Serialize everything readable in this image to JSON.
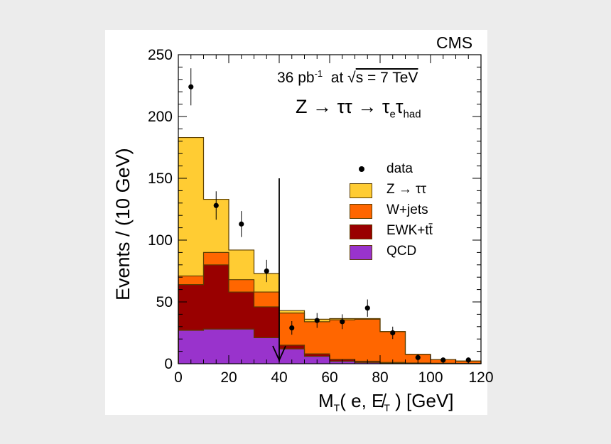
{
  "chart_data": {
    "type": "histogram-stacked",
    "experiment_label": "CMS",
    "luminosity_text": "36 pb",
    "luminosity_exponent": "-1",
    "energy_prefix": "at",
    "energy_text": "s = 7 TeV",
    "process_main": "Z → ττ → τ",
    "process_sub1": "e",
    "process_mid": "τ",
    "process_sub2": "had",
    "xlabel_main": "M",
    "xlabel_sub": "T",
    "xlabel_rest": "( e, E̸",
    "xlabel_sub2": "T",
    "xlabel_unit": " )  [GeV]",
    "ylabel": "Events / (10 GeV)",
    "xlim": [
      0,
      120
    ],
    "ylim": [
      0,
      250
    ],
    "x_ticks": [
      "0",
      "20",
      "40",
      "60",
      "80",
      "100",
      "120"
    ],
    "y_ticks": [
      "0",
      "50",
      "100",
      "150",
      "200",
      "250"
    ],
    "bin_edges": [
      0,
      10,
      20,
      30,
      40,
      50,
      60,
      70,
      80,
      90,
      100,
      110,
      120
    ],
    "series": [
      {
        "name": "QCD",
        "color": "#9933cc",
        "values": [
          27,
          28,
          28,
          21,
          12,
          6,
          2,
          1,
          0.5,
          0.3,
          0.2,
          0.1
        ]
      },
      {
        "name": "EWK+tt̄",
        "color": "#990000",
        "values": [
          37,
          52,
          30,
          25,
          3,
          2,
          1.5,
          1,
          0.5,
          0.3,
          0.2,
          0.1
        ]
      },
      {
        "name": "W+jets",
        "color": "#ff6600",
        "values": [
          7,
          10,
          10,
          12,
          26,
          26,
          32,
          34,
          25,
          7,
          3,
          2
        ]
      },
      {
        "name": "Z → ττ",
        "color": "#ffcc33",
        "values": [
          112,
          43,
          24,
          15,
          2,
          2,
          1,
          0.5,
          0,
          0,
          0,
          0
        ]
      }
    ],
    "data_points": [
      {
        "x": 5,
        "y": 224,
        "err": 15
      },
      {
        "x": 15,
        "y": 128,
        "err": 11.5
      },
      {
        "x": 25,
        "y": 113,
        "err": 10.5
      },
      {
        "x": 35,
        "y": 75,
        "err": 9
      },
      {
        "x": 45,
        "y": 29,
        "err": 5.5
      },
      {
        "x": 55,
        "y": 35,
        "err": 6
      },
      {
        "x": 65,
        "y": 34,
        "err": 6
      },
      {
        "x": 75,
        "y": 45,
        "err": 7
      },
      {
        "x": 85,
        "y": 25,
        "err": 5
      },
      {
        "x": 95,
        "y": 5,
        "err": 2.5
      },
      {
        "x": 105,
        "y": 3,
        "err": 2
      },
      {
        "x": 115,
        "y": 3,
        "err": 2
      }
    ],
    "cut": {
      "x": 40,
      "y_top": 150
    },
    "legend": [
      {
        "label": "data",
        "kind": "marker",
        "color": "#000000"
      },
      {
        "label": "Z → ττ",
        "kind": "box",
        "color": "#ffcc33"
      },
      {
        "label": "W+jets",
        "kind": "box",
        "color": "#ff6600"
      },
      {
        "label": "EWK+tt̄",
        "kind": "box",
        "color": "#990000"
      },
      {
        "label": "QCD",
        "kind": "box",
        "color": "#9933cc"
      }
    ],
    "legend_placement": "right"
  }
}
